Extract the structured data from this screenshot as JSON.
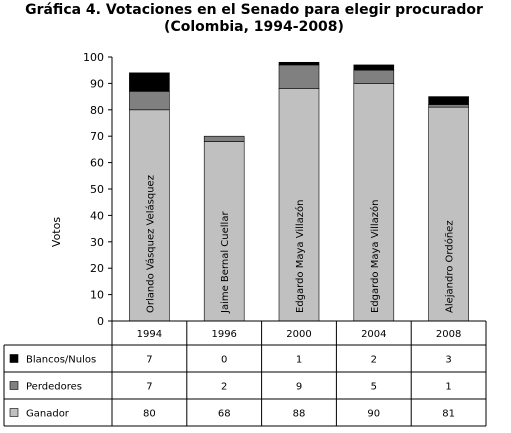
{
  "chart_data": {
    "type": "bar",
    "stacked": true,
    "title_line1": "Gráfica 4. Votaciones en el Senado para elegir procurador",
    "title_line2": "(Colombia, 1994-2008)",
    "ylabel": "Votos",
    "ylim": [
      0,
      100
    ],
    "yticks": [
      0,
      10,
      20,
      30,
      40,
      50,
      60,
      70,
      80,
      90,
      100
    ],
    "categories": [
      "1994",
      "1996",
      "2000",
      "2004",
      "2008"
    ],
    "bar_labels": [
      "Orlando Vásquez Velásquez",
      "Jaime Bernal Cuellar",
      "Edgardo Maya Villazón",
      "Edgardo Maya Villazón",
      "Alejandro Ordóñez"
    ],
    "series": [
      {
        "name": "Ganador",
        "values": [
          80,
          68,
          88,
          90,
          81
        ],
        "color": "#c0c0c0"
      },
      {
        "name": "Perdedores",
        "values": [
          7,
          2,
          9,
          5,
          1
        ],
        "color": "#808080"
      },
      {
        "name": "Blancos/Nulos",
        "values": [
          7,
          0,
          1,
          2,
          3
        ],
        "color": "#000000"
      }
    ],
    "table_row_order": [
      "Blancos/Nulos",
      "Perdedores",
      "Ganador"
    ],
    "grid": false
  }
}
